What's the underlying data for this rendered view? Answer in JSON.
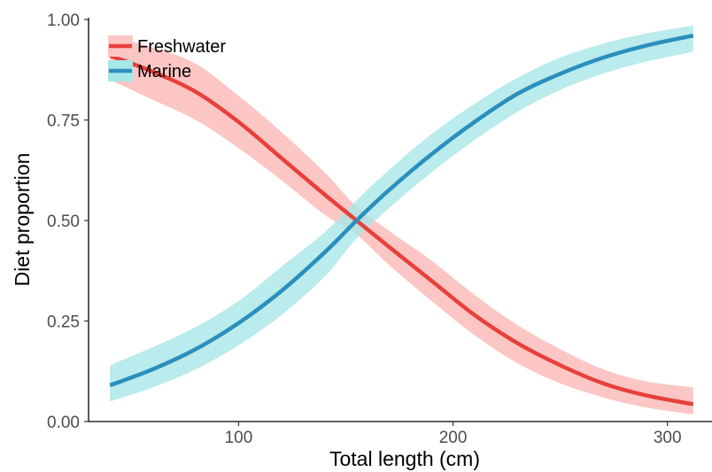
{
  "chart_data": {
    "type": "line",
    "xlabel": "Total length (cm)",
    "ylabel": "Diet proportion",
    "xlim": [
      30,
      315
    ],
    "ylim": [
      0,
      1
    ],
    "x_ticks": [
      100,
      200,
      300
    ],
    "y_ticks": [
      0,
      0.25,
      0.5,
      0.75,
      1
    ],
    "x_tick_labels": [
      "100",
      "200",
      "300"
    ],
    "y_tick_labels": [
      "0.00",
      "0.25",
      "0.50",
      "0.75",
      "1.00"
    ],
    "grid": false,
    "legend_position": "top-left",
    "series": [
      {
        "name": "Freshwater",
        "line_color": "#e8403b",
        "band_color": "#fcc6c4",
        "x": [
          40,
          60,
          80,
          100,
          120,
          140,
          155,
          170,
          190,
          210,
          230,
          250,
          270,
          290,
          312
        ],
        "y": [
          0.91,
          0.87,
          0.82,
          0.745,
          0.655,
          0.565,
          0.5,
          0.435,
          0.35,
          0.265,
          0.195,
          0.14,
          0.095,
          0.065,
          0.043
        ],
        "lower": [
          0.85,
          0.8,
          0.75,
          0.68,
          0.6,
          0.515,
          0.465,
          0.39,
          0.3,
          0.215,
          0.145,
          0.095,
          0.06,
          0.035,
          0.018
        ],
        "upper": [
          0.96,
          0.93,
          0.89,
          0.81,
          0.72,
          0.62,
          0.535,
          0.475,
          0.4,
          0.315,
          0.24,
          0.18,
          0.13,
          0.1,
          0.085
        ]
      },
      {
        "name": "Marine",
        "line_color": "#2b8fbd",
        "band_color": "#a6e6e8",
        "x": [
          40,
          60,
          80,
          100,
          120,
          140,
          155,
          170,
          190,
          210,
          230,
          250,
          270,
          290,
          312
        ],
        "y": [
          0.09,
          0.13,
          0.18,
          0.245,
          0.325,
          0.42,
          0.5,
          0.575,
          0.665,
          0.745,
          0.815,
          0.865,
          0.905,
          0.935,
          0.96
        ],
        "lower": [
          0.05,
          0.085,
          0.13,
          0.19,
          0.265,
          0.36,
          0.455,
          0.53,
          0.62,
          0.7,
          0.77,
          0.825,
          0.865,
          0.895,
          0.92
        ],
        "upper": [
          0.14,
          0.185,
          0.235,
          0.3,
          0.385,
          0.47,
          0.55,
          0.625,
          0.715,
          0.79,
          0.855,
          0.905,
          0.94,
          0.965,
          0.985
        ]
      }
    ]
  }
}
